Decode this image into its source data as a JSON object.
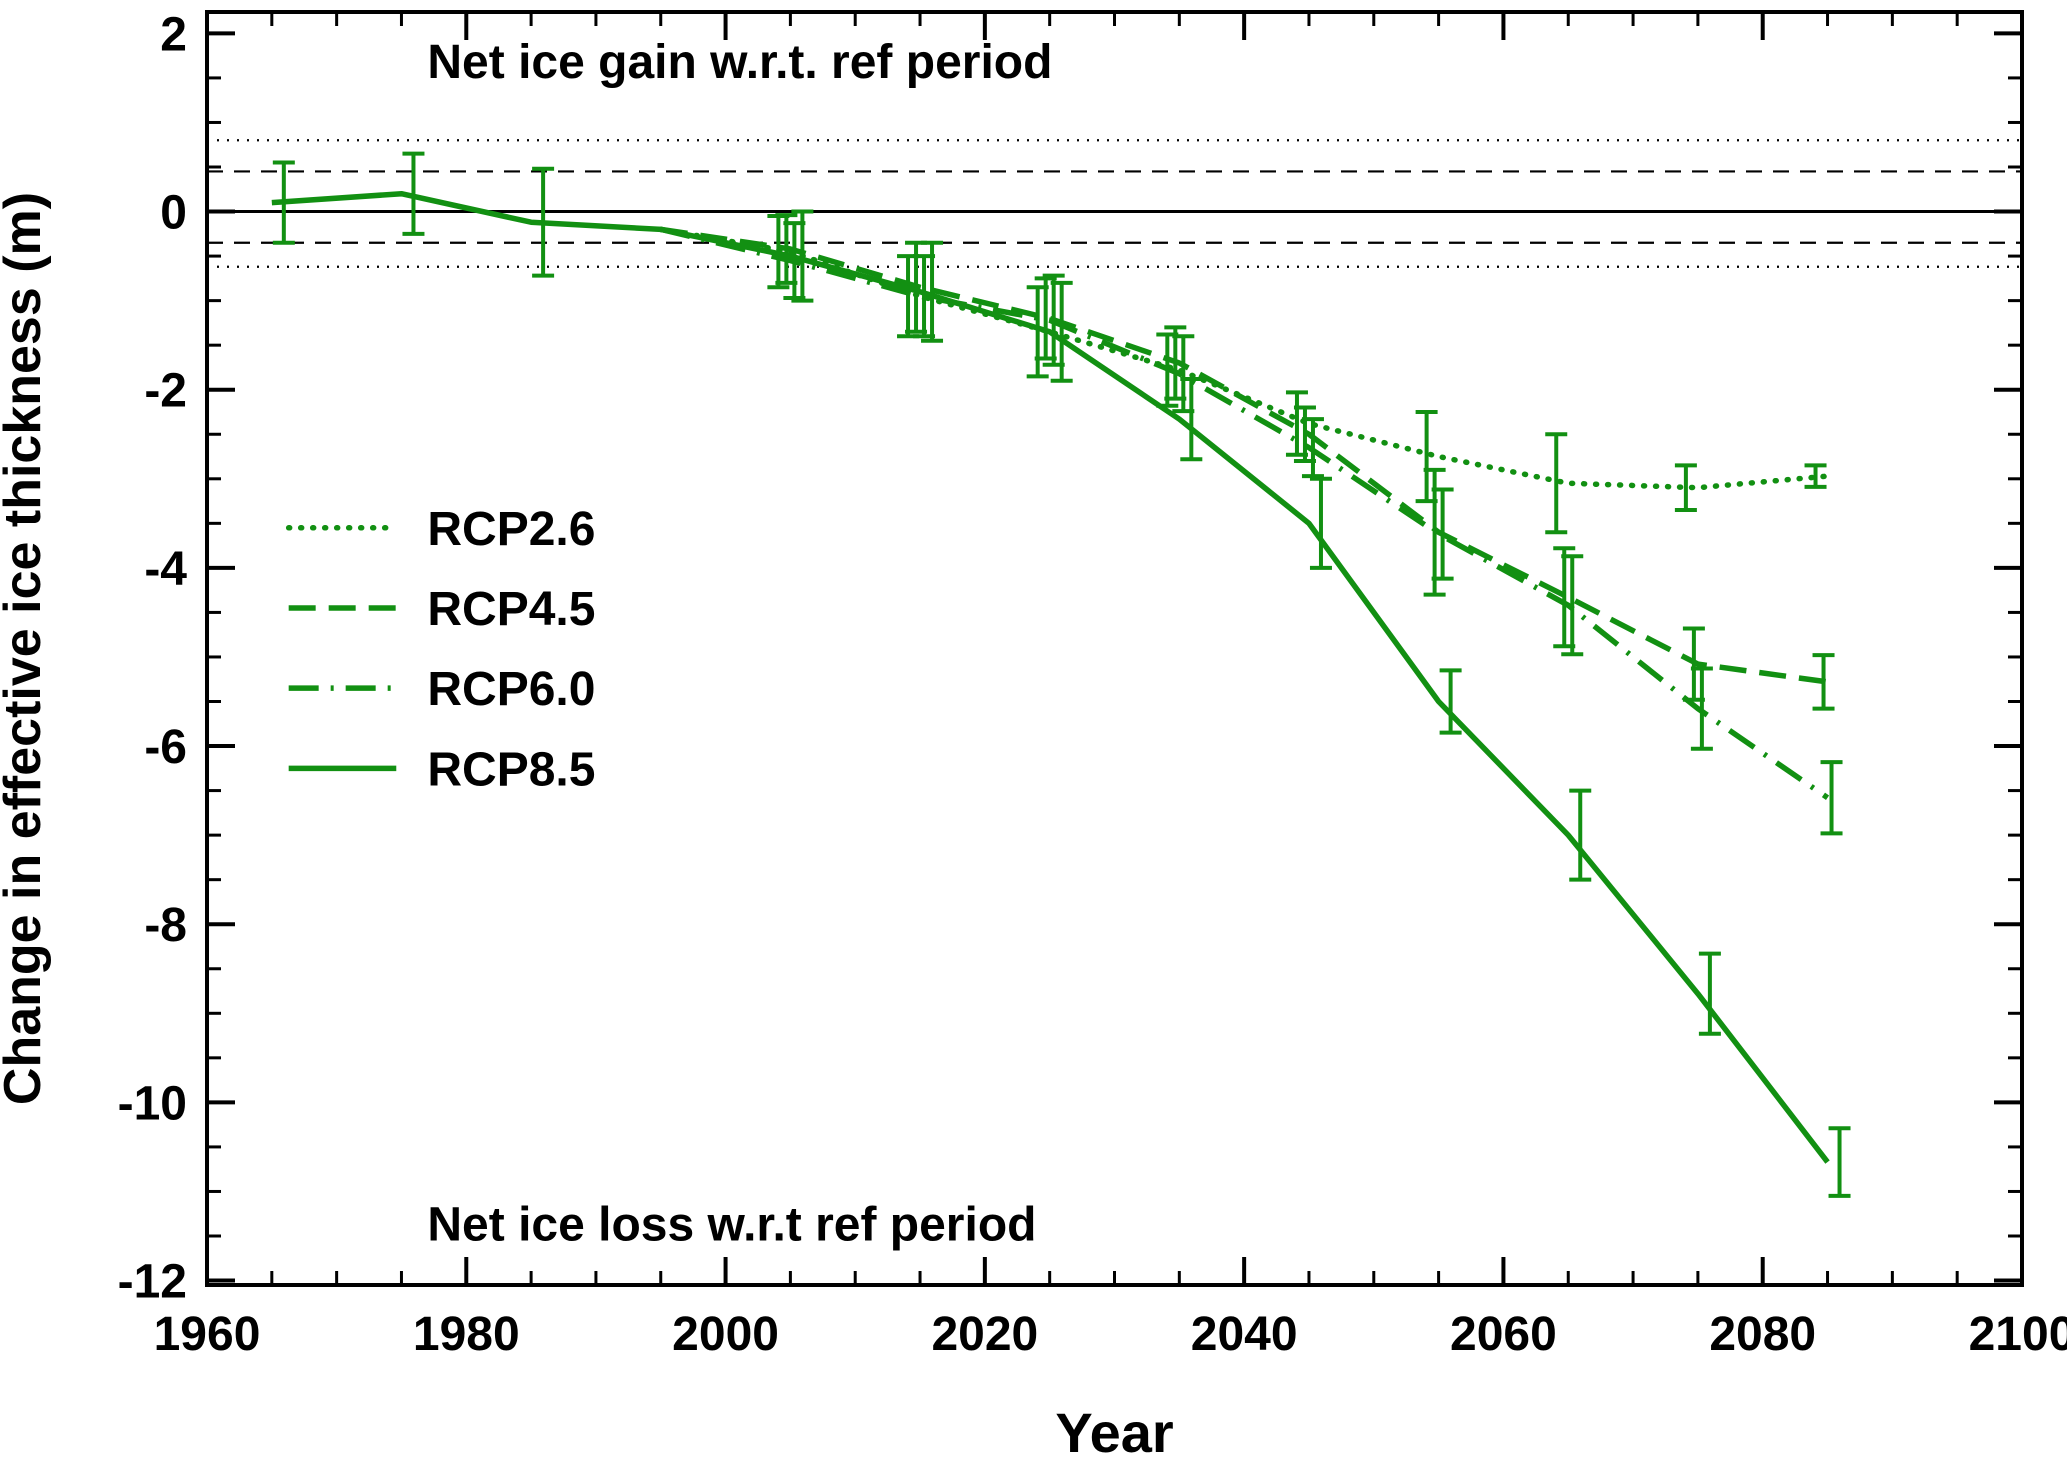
{
  "figure": {
    "background": "#ffffff",
    "axis_color": "#000000",
    "series_color": "#129012",
    "text_color": "#000000"
  },
  "chart_data": {
    "type": "line",
    "title": "",
    "xlabel": "Year",
    "ylabel": "Change in effective ice thickness (m)",
    "xlim": [
      1960,
      2100
    ],
    "ylim": [
      -12,
      2
    ],
    "xticks": [
      1960,
      1980,
      2000,
      2020,
      2040,
      2060,
      2080,
      2100
    ],
    "yticks": [
      2,
      0,
      -2,
      -4,
      -6,
      -8,
      -10,
      -12
    ],
    "x_minor_step": 5,
    "y_minor_step": 0.5,
    "grid": false,
    "legend_position": "center-left-inside",
    "annotations": [
      {
        "name": "annotation-net-ice-gain",
        "text": "Net ice gain w.r.t. ref period",
        "x": 1977,
        "y": 1.5
      },
      {
        "name": "annotation-net-ice-loss",
        "text": "Net ice loss w.r.t ref period",
        "x": 1977,
        "y": -11.55
      }
    ],
    "reference_lines": [
      {
        "y": 0,
        "style": "solid"
      },
      {
        "y": 0.45,
        "style": "dashed"
      },
      {
        "y": -0.35,
        "style": "dashed"
      },
      {
        "y": 0.8,
        "style": "dotted"
      },
      {
        "y": -0.62,
        "style": "dotted"
      }
    ],
    "x": [
      1965,
      1975,
      1985,
      1995,
      2005,
      2015,
      2025,
      2035,
      2045,
      2055,
      2065,
      2075,
      2085
    ],
    "series": [
      {
        "name": "RCP2.6",
        "style": "dotted",
        "values": [
          null,
          null,
          null,
          -0.2,
          -0.45,
          -0.95,
          -1.35,
          -1.78,
          -2.38,
          -2.75,
          -3.05,
          -3.1,
          -2.97
        ],
        "errors": [
          null,
          null,
          null,
          null,
          0.4,
          0.45,
          0.5,
          0.4,
          0.35,
          0.5,
          0.55,
          0.25,
          0.12
        ]
      },
      {
        "name": "RCP4.5",
        "style": "dashed",
        "values": [
          null,
          null,
          null,
          -0.2,
          -0.42,
          -0.85,
          -1.2,
          -1.7,
          -2.5,
          -3.6,
          -4.33,
          -5.08,
          -5.28
        ],
        "errors": [
          null,
          null,
          null,
          null,
          0.38,
          0.5,
          0.45,
          0.4,
          0.3,
          0.7,
          0.55,
          0.4,
          0.3
        ]
      },
      {
        "name": "RCP6.0",
        "style": "dashdot",
        "values": [
          null,
          null,
          null,
          -0.2,
          -0.55,
          -0.95,
          -1.22,
          -1.82,
          -2.65,
          -3.62,
          -4.42,
          -5.58,
          -6.58
        ],
        "errors": [
          null,
          null,
          null,
          null,
          0.42,
          0.45,
          0.5,
          0.42,
          0.32,
          0.5,
          0.55,
          0.45,
          0.4
        ]
      },
      {
        "name": "RCP8.5",
        "style": "solid",
        "values": [
          0.1,
          0.2,
          -0.12,
          -0.2,
          -0.5,
          -0.9,
          -1.35,
          -2.33,
          -3.5,
          -5.5,
          -7.0,
          -8.78,
          -10.67
        ],
        "errors": [
          0.45,
          0.45,
          0.6,
          null,
          0.5,
          0.55,
          0.55,
          0.45,
          0.5,
          0.35,
          0.5,
          0.45,
          0.38
        ]
      }
    ]
  }
}
